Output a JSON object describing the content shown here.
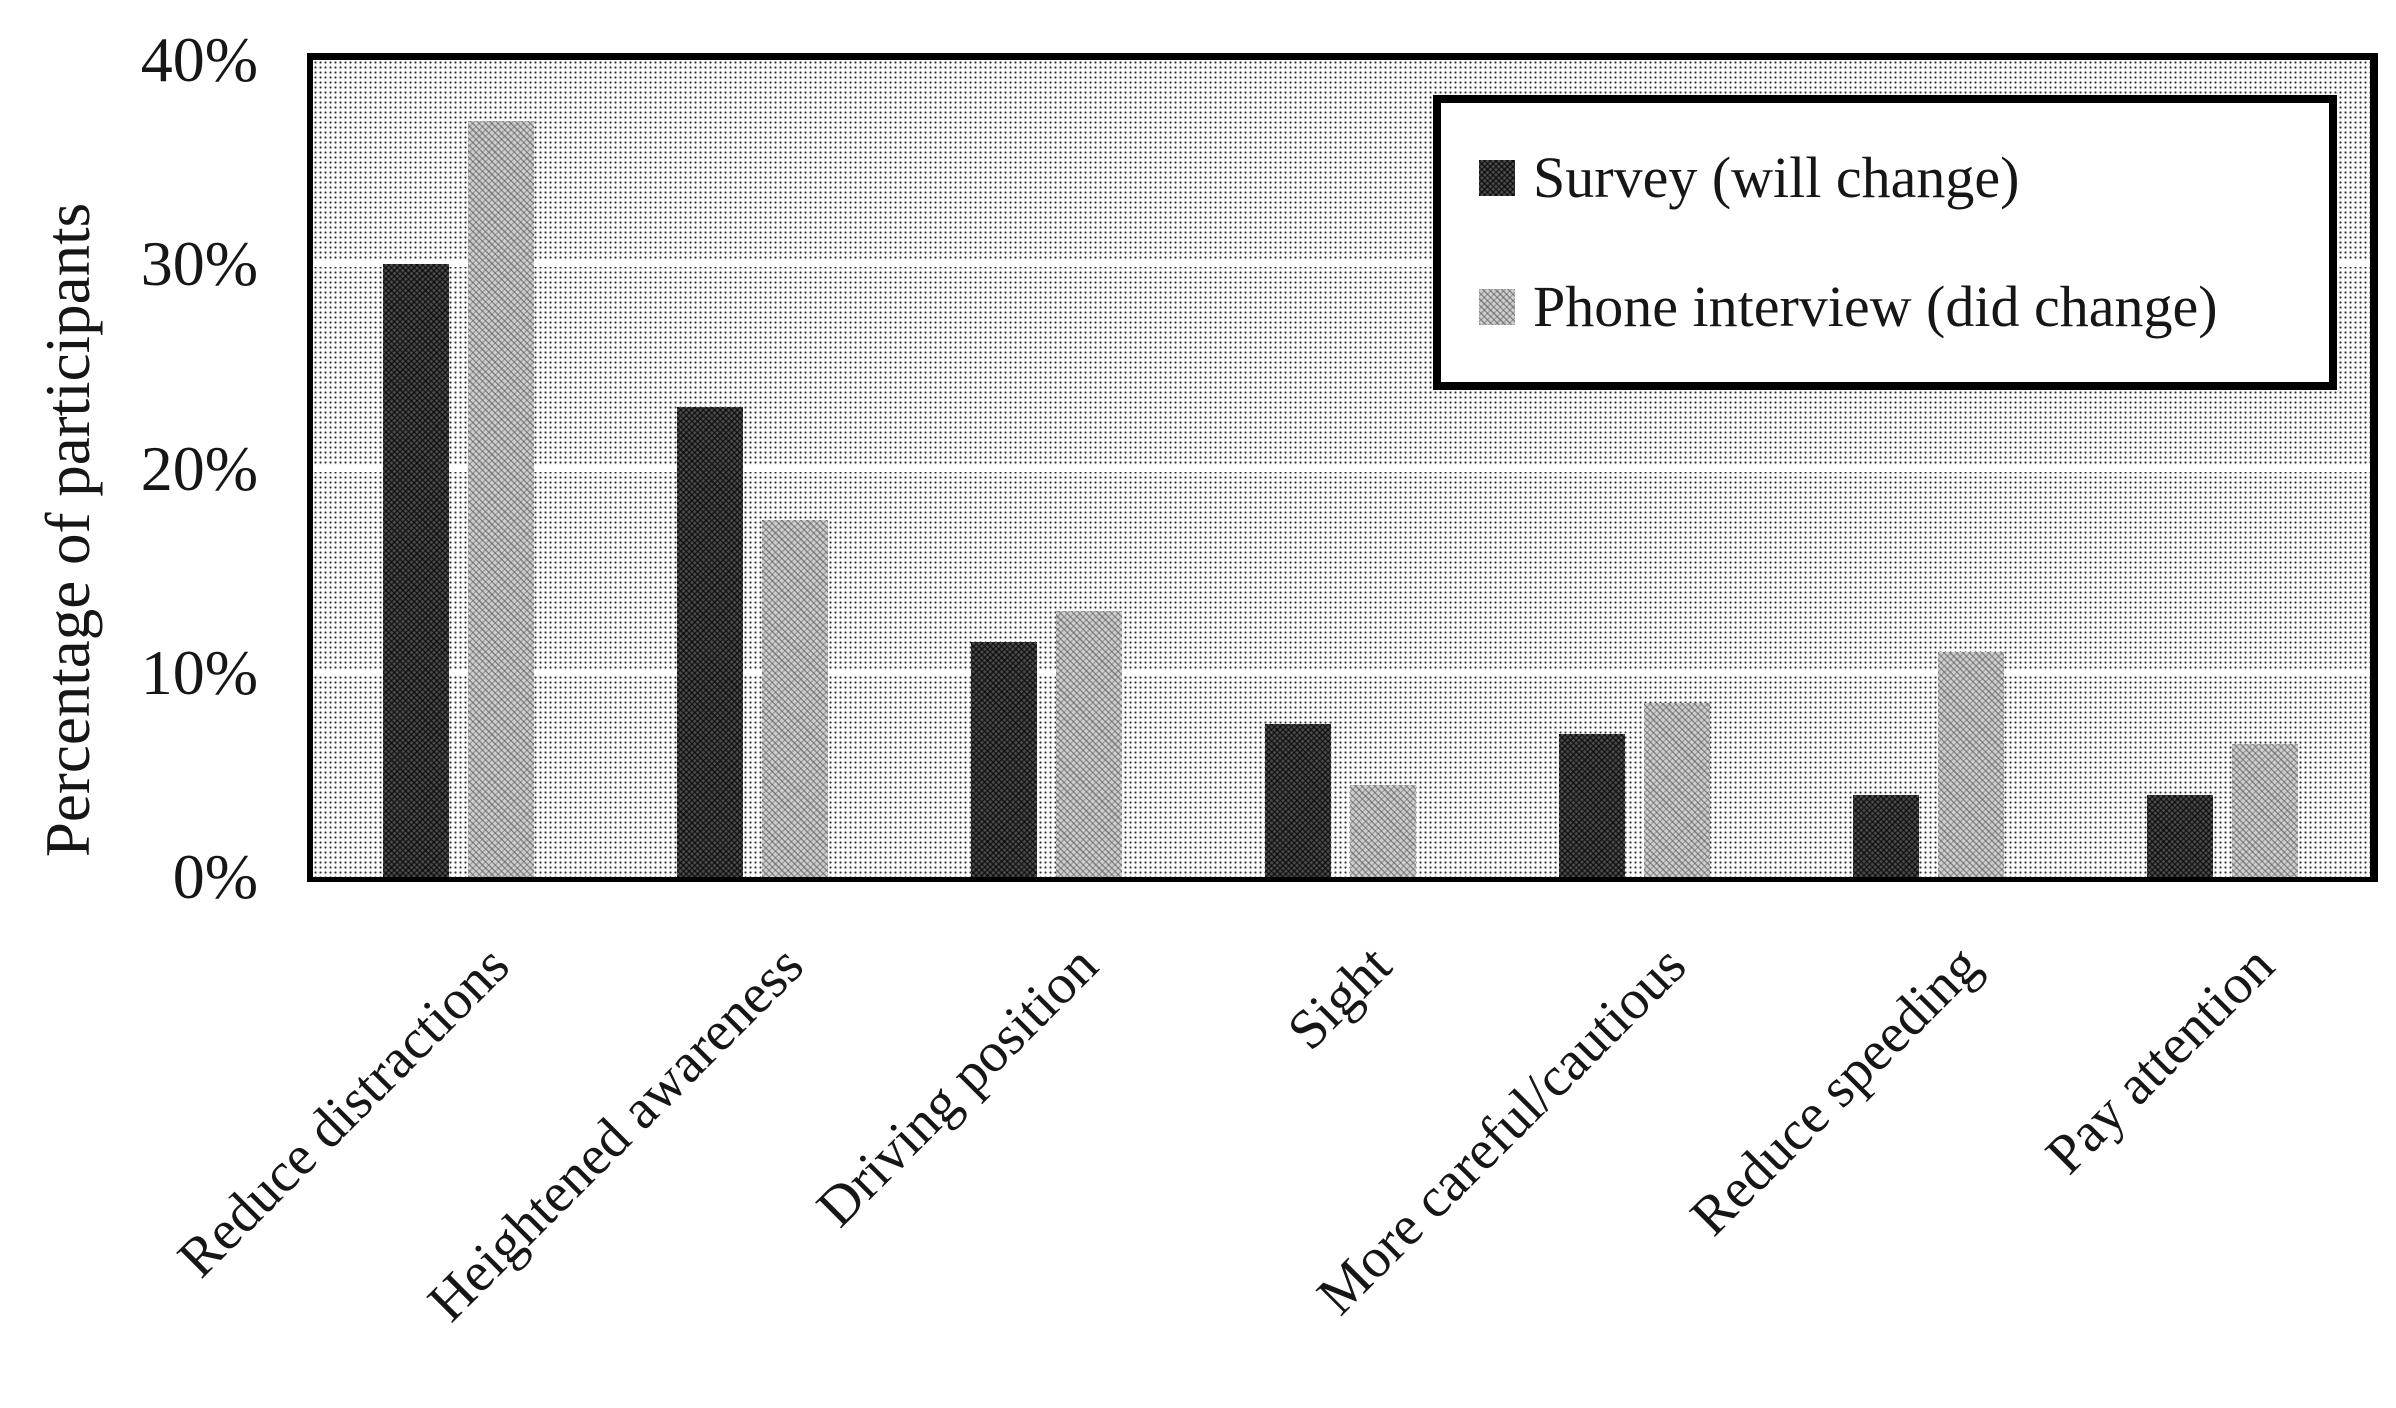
{
  "chart_data": {
    "type": "bar",
    "title": "",
    "categories": [
      "Reduce distractions",
      "Heightened awareness",
      "Driving position",
      "Sight",
      "More careful/cautious",
      "Reduce speeding",
      "Pay attention"
    ],
    "series": [
      {
        "name": "Survey (will change)",
        "values": [
          30,
          23,
          11.5,
          7.5,
          7,
          4,
          4
        ],
        "color": "#4a4a4a",
        "pattern": "dense-crosshatch"
      },
      {
        "name": "Phone interview (did change)",
        "values": [
          37,
          17.5,
          13,
          4.5,
          8.5,
          11,
          6.5
        ],
        "color": "#bfbfbf",
        "pattern": "light-halftone"
      }
    ],
    "xlabel": "",
    "ylabel": "Percentage of participants",
    "ylim": [
      0,
      40
    ],
    "y_ticks": [
      {
        "value": 0,
        "label": "0%"
      },
      {
        "value": 10,
        "label": "10%"
      },
      {
        "value": 20,
        "label": "20%"
      },
      {
        "value": 30,
        "label": "30%"
      },
      {
        "value": 40,
        "label": "40%"
      }
    ],
    "grid": {
      "horizontal": true,
      "gridline_values": [
        10,
        20,
        30
      ],
      "color": "#ffffff"
    },
    "legend": {
      "position": "top-right",
      "border_color": "#000000",
      "background": "#ffffff"
    },
    "x_tick_rotation_deg": 45
  }
}
